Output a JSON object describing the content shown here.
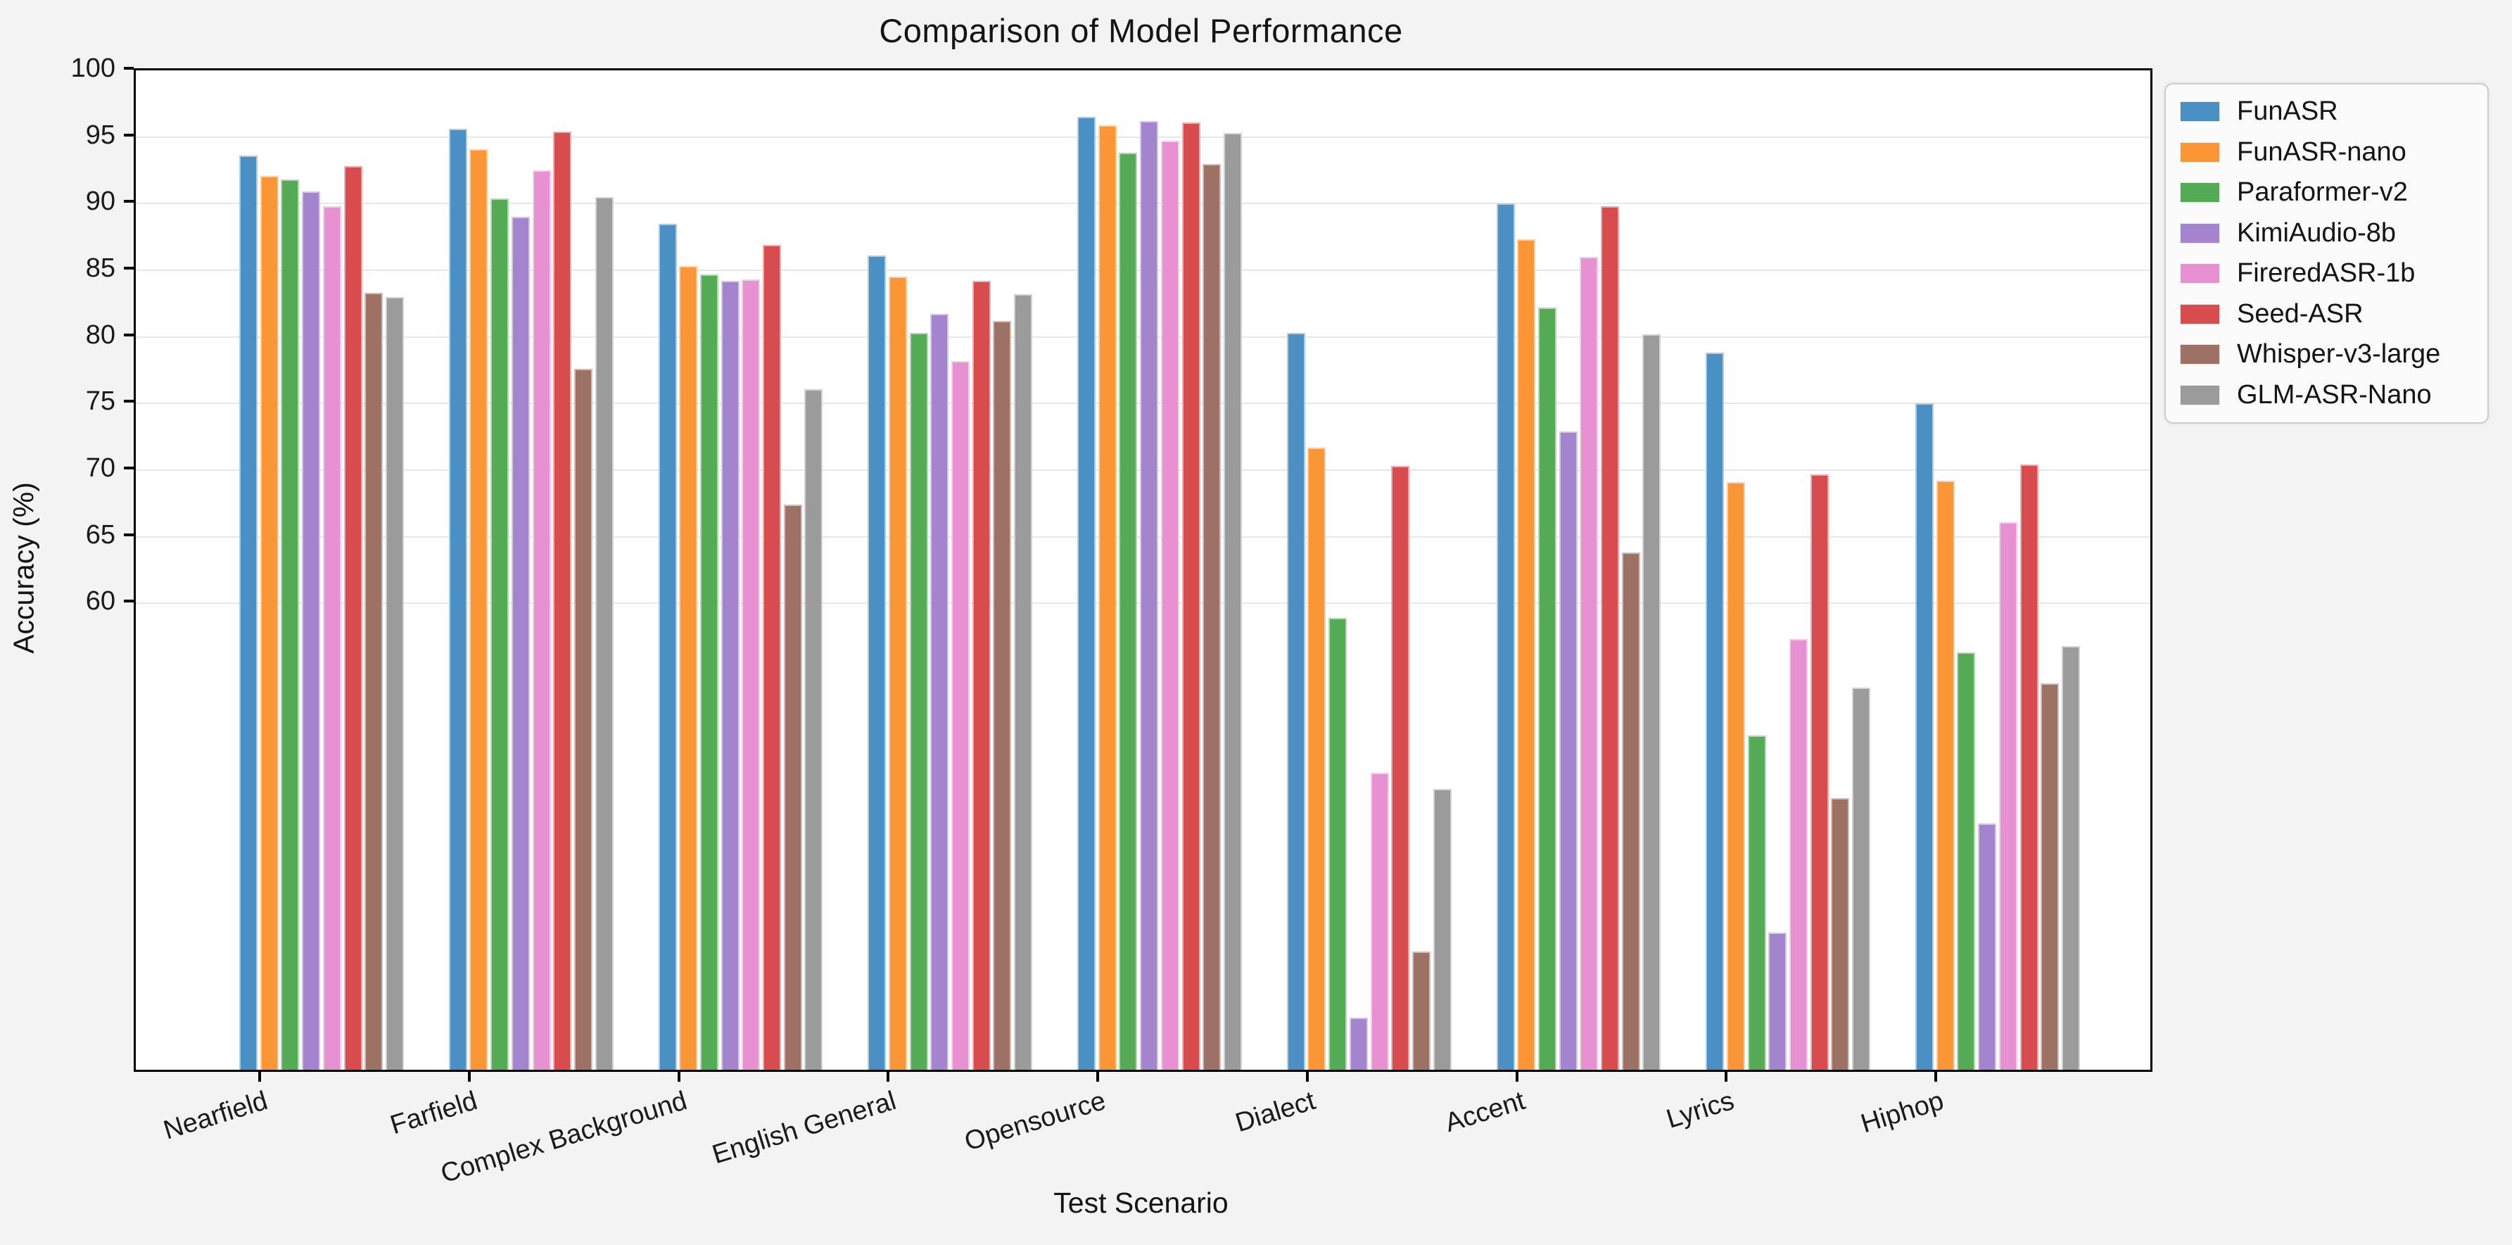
{
  "title": "Comparison of Model Performance",
  "figure": {
    "background_color": "#f3f3f4",
    "plot_background_color": "#ffffff",
    "gridline_color": "#e7e7e9",
    "spine_color": "#000000"
  },
  "y_axis": {
    "label": "Accuracy (%)",
    "tick_labels": [
      "100",
      "95",
      "90",
      "85",
      "80",
      "75",
      "70",
      "65",
      "60"
    ],
    "ticks": [
      100,
      95,
      90,
      85,
      80,
      75,
      70,
      65,
      60
    ]
  },
  "x_axis": {
    "label": "Test Scenario",
    "tick_rotation_deg": 17
  },
  "chart_data": {
    "type": "bar",
    "title": "Comparison of Model Performance",
    "xlabel": "Test Scenario",
    "ylabel": "Accuracy (%)",
    "ylim": [
      25,
      100
    ],
    "grid": true,
    "gridlines_at": [
      60,
      65,
      70,
      75,
      80,
      85,
      90,
      95
    ],
    "legend_position": "upper right, outside plot",
    "categories": [
      "Nearfield",
      "Farfield",
      "Complex Background",
      "English General",
      "Opensource",
      "Dialect",
      "Accent",
      "Lyrics",
      "Hiphop"
    ],
    "series": [
      {
        "name": "FunASR",
        "color": "#4a90c4",
        "values": [
          93.6,
          95.6,
          88.5,
          86.1,
          96.5,
          80.3,
          90.0,
          78.8,
          75.0
        ]
      },
      {
        "name": "FunASR-nano",
        "color": "#fb9637",
        "values": [
          92.1,
          94.1,
          85.3,
          84.5,
          95.9,
          71.7,
          87.3,
          69.1,
          69.2
        ]
      },
      {
        "name": "Paraformer-v2",
        "color": "#55ab55",
        "values": [
          91.8,
          90.4,
          84.7,
          80.3,
          93.8,
          58.9,
          82.2,
          50.1,
          56.3
        ]
      },
      {
        "name": "KimiAudio-8b",
        "color": "#a384cd",
        "values": [
          90.9,
          89.0,
          84.2,
          81.7,
          96.2,
          28.9,
          72.9,
          35.3,
          43.5
        ]
      },
      {
        "name": "FireredASR-1b",
        "color": "#e791d3",
        "values": [
          89.8,
          92.5,
          84.3,
          78.2,
          94.7,
          47.3,
          86.0,
          57.3,
          66.1
        ]
      },
      {
        "name": "Seed-ASR",
        "color": "#d94c4e",
        "values": [
          92.8,
          95.4,
          86.9,
          84.2,
          96.1,
          70.3,
          89.8,
          69.7,
          70.4
        ]
      },
      {
        "name": "Whisper-v3-large",
        "color": "#9d7164",
        "values": [
          83.3,
          77.6,
          67.4,
          81.2,
          93.0,
          33.9,
          63.8,
          45.4,
          54.0
        ]
      },
      {
        "name": "GLM-ASR-Nano",
        "color": "#9b9b9b",
        "values": [
          83.0,
          90.5,
          76.1,
          83.2,
          95.3,
          46.1,
          80.2,
          53.7,
          56.8
        ]
      }
    ]
  }
}
